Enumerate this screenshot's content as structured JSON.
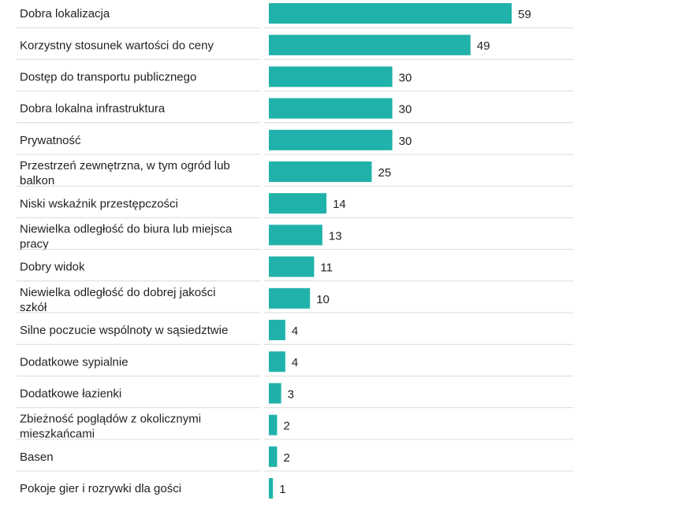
{
  "chart_data": {
    "type": "bar",
    "orientation": "horizontal",
    "title": "",
    "xlabel": "",
    "ylabel": "",
    "bar_color": "#20b2aa",
    "separator_color": "#d9d9d9",
    "categories": [
      "Dobra lokalizacja",
      "Korzystny stosunek wartości do ceny",
      "Dostęp do transportu publicznego",
      "Dobra lokalna infrastruktura",
      "Prywatność",
      "Przestrzeń zewnętrzna, w tym ogród lub balkon",
      "Niski wskaźnik przestępczości",
      "Niewielka odległość do biura lub miejsca pracy",
      "Dobry widok",
      "Niewielka odległość do dobrej jakości szkół",
      "Silne poczucie wspólnoty w sąsiedztwie",
      "Dodatkowe sypialnie",
      "Dodatkowe łazienki",
      "Zbieżność poglądów z okolicznymi mieszkańcami",
      "Basen",
      "Pokoje gier i rozrywki dla gości"
    ],
    "label_lines": [
      [
        "Dobra lokalizacja"
      ],
      [
        "Korzystny stosunek wartości do ceny"
      ],
      [
        "Dostęp do transportu publicznego"
      ],
      [
        "Dobra lokalna infrastruktura"
      ],
      [
        "Prywatność"
      ],
      [
        "Przestrzeń zewnętrzna, w tym ogród lub",
        "balkon"
      ],
      [
        "Niski wskaźnik przestępczości"
      ],
      [
        "Niewielka odległość do biura lub miejsca",
        "pracy"
      ],
      [
        "Dobry widok"
      ],
      [
        "Niewielka odległość do dobrej jakości",
        "szkół"
      ],
      [
        "Silne poczucie wspólnoty w sąsiedztwie"
      ],
      [
        "Dodatkowe sypialnie"
      ],
      [
        "Dodatkowe łazienki"
      ],
      [
        "Zbieżność poglądów z okolicznymi",
        "mieszkańcami"
      ],
      [
        "Basen"
      ],
      [
        "Pokoje gier i rozrywki dla gości"
      ]
    ],
    "values": [
      59,
      49,
      30,
      30,
      30,
      25,
      14,
      13,
      11,
      10,
      4,
      4,
      3,
      2,
      2,
      1
    ],
    "xlim": [
      0,
      59
    ]
  }
}
